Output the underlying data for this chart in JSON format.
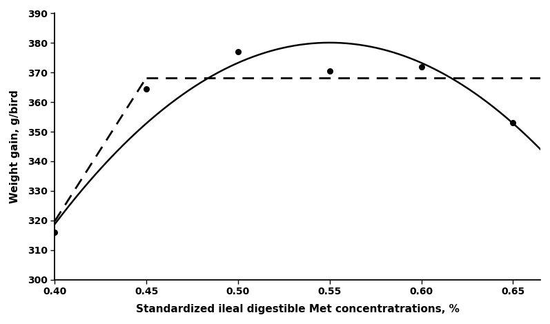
{
  "data_points_x": [
    0.4,
    0.45,
    0.5,
    0.55,
    0.6,
    0.65
  ],
  "data_points_y": [
    316.0,
    364.5,
    377.0,
    370.5,
    372.0,
    353.0
  ],
  "broken_line_req": 0.45,
  "broken_line_plateau": 368.3,
  "broken_line_slope": 970.3,
  "quad_a": 380.1,
  "quad_req": 0.55,
  "quad_coeff": 2726.0,
  "xmin": 0.4,
  "xmax": 0.665,
  "ymin": 300,
  "ymax": 390,
  "xlabel": "Standardized ileal digestible Met concentratrations, %",
  "ylabel": "Weight gain, g/bird",
  "xticks": [
    0.4,
    0.45,
    0.5,
    0.55,
    0.6,
    0.65
  ],
  "yticks": [
    300,
    310,
    320,
    330,
    340,
    350,
    360,
    370,
    380,
    390
  ],
  "dot_color": "#000000",
  "line_color": "#000000",
  "dash_color": "#000000",
  "figsize": [
    7.97,
    4.7
  ],
  "dpi": 100
}
